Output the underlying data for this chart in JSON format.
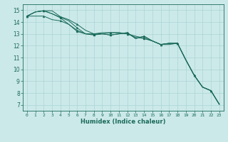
{
  "title": "",
  "xlabel": "Humidex (Indice chaleur)",
  "xlim": [
    -0.5,
    23.5
  ],
  "ylim": [
    6.5,
    15.5
  ],
  "xticks": [
    0,
    1,
    2,
    3,
    4,
    5,
    6,
    7,
    8,
    9,
    10,
    11,
    12,
    13,
    14,
    15,
    16,
    17,
    18,
    19,
    20,
    21,
    22,
    23
  ],
  "yticks": [
    7,
    8,
    9,
    10,
    11,
    12,
    13,
    14,
    15
  ],
  "background_color": "#cce9e9",
  "grid_color": "#aad4d4",
  "line_color": "#1a6b5a",
  "line1_x": [
    0,
    1,
    2,
    3,
    4,
    5,
    6,
    7,
    8,
    9,
    10,
    11,
    12,
    13,
    14,
    15,
    16,
    17,
    18,
    19,
    20,
    21,
    22,
    23
  ],
  "line1_y": [
    14.5,
    14.85,
    14.95,
    14.95,
    14.45,
    14.2,
    13.8,
    13.3,
    13.0,
    13.0,
    12.9,
    13.0,
    13.1,
    12.6,
    12.8,
    12.4,
    12.1,
    12.2,
    12.2,
    10.8,
    9.5,
    8.5,
    8.2,
    7.05
  ],
  "line2_x": [
    0,
    1,
    2,
    3,
    4,
    5,
    6,
    7,
    8,
    9,
    10,
    11,
    12,
    13,
    14,
    15,
    16,
    17,
    18,
    19,
    20,
    21,
    22,
    23
  ],
  "line2_y": [
    14.5,
    14.85,
    14.95,
    14.7,
    14.4,
    14.1,
    13.5,
    13.0,
    12.9,
    13.0,
    12.9,
    13.0,
    13.1,
    12.6,
    12.8,
    12.4,
    12.1,
    12.2,
    12.2,
    10.8,
    9.5,
    8.5,
    8.2,
    7.05
  ],
  "line3_x": [
    0,
    1,
    2,
    3,
    4,
    5,
    6,
    7,
    8,
    9,
    10,
    11,
    12,
    13,
    14,
    15,
    16,
    17,
    18,
    19,
    20,
    21,
    22,
    23
  ],
  "line3_y": [
    14.5,
    14.85,
    14.95,
    14.7,
    14.35,
    13.8,
    13.2,
    13.0,
    12.95,
    13.0,
    13.1,
    13.1,
    13.0,
    12.8,
    12.65,
    12.4,
    12.1,
    12.2,
    12.2,
    10.8,
    9.5,
    8.5,
    8.2,
    7.05
  ],
  "line4_x": [
    0,
    1,
    2,
    3,
    4,
    5,
    6,
    7,
    8,
    9,
    10,
    11,
    12,
    13,
    14,
    15,
    16,
    17,
    18,
    19,
    20,
    21,
    22,
    23
  ],
  "line4_y": [
    14.5,
    14.5,
    14.5,
    14.2,
    14.1,
    13.8,
    13.3,
    13.0,
    13.0,
    13.1,
    13.1,
    13.1,
    13.0,
    12.7,
    12.6,
    12.4,
    12.1,
    12.1,
    12.2,
    10.8,
    9.5,
    8.5,
    8.2,
    7.05
  ]
}
